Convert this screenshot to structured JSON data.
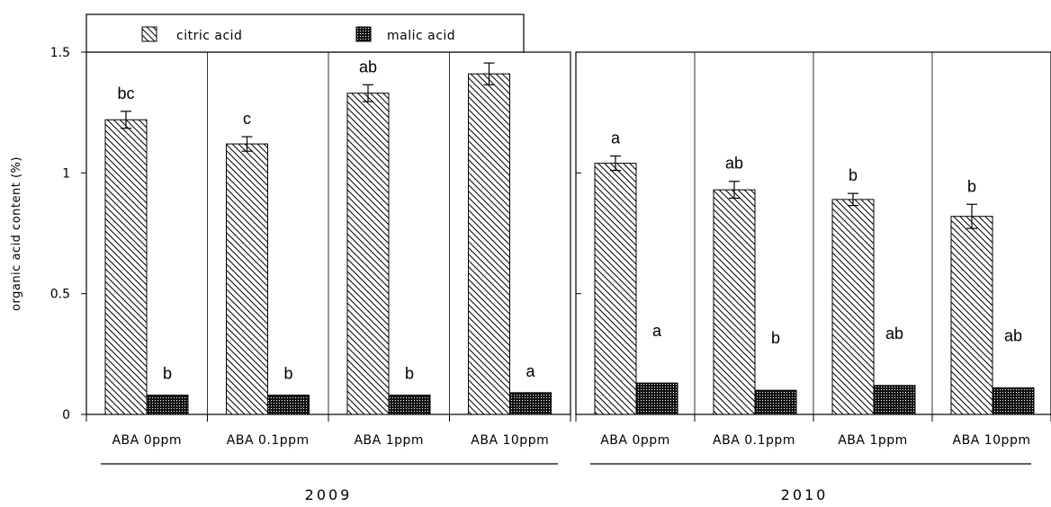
{
  "chart_data": {
    "type": "bar",
    "ylabel": "organic acid content (%)",
    "ylim": [
      0,
      1.5
    ],
    "yticks": [
      "0",
      "0.5",
      "1",
      "1.5"
    ],
    "legend": [
      {
        "name": "citric acid",
        "pattern": "diagonal-hatch"
      },
      {
        "name": "malic acid",
        "pattern": "dotted-dark"
      }
    ],
    "groups": [
      {
        "year": "2009",
        "categories": [
          "ABA 0ppm",
          "ABA 0.1ppm",
          "ABA 1ppm",
          "ABA 10ppm"
        ],
        "series": [
          {
            "name": "citric acid",
            "values": [
              1.22,
              1.12,
              1.33,
              1.41
            ],
            "errors": [
              0.035,
              0.03,
              0.035,
              0.045
            ],
            "letters": [
              "bc",
              "c",
              "ab",
              "a"
            ]
          },
          {
            "name": "malic acid",
            "values": [
              0.08,
              0.08,
              0.08,
              0.09
            ],
            "errors": [
              0.0,
              0.0,
              0.0,
              0.0
            ],
            "letters": [
              "b",
              "b",
              "b",
              "a"
            ]
          }
        ]
      },
      {
        "year": "2010",
        "categories": [
          "ABA 0ppm",
          "ABA 0.1ppm",
          "ABA 1ppm",
          "ABA 10ppm"
        ],
        "series": [
          {
            "name": "citric acid",
            "values": [
              1.04,
              0.93,
              0.89,
              0.82
            ],
            "errors": [
              0.03,
              0.035,
              0.025,
              0.05
            ],
            "letters": [
              "a",
              "ab",
              "b",
              "b"
            ]
          },
          {
            "name": "malic acid",
            "values": [
              0.13,
              0.1,
              0.12,
              0.11
            ],
            "errors": [
              0.005,
              0.005,
              0.005,
              0.005
            ],
            "letters": [
              "a",
              "b",
              "ab",
              "ab"
            ]
          }
        ]
      }
    ]
  },
  "colors": {
    "bar_fill": "#ffffff",
    "stroke": "#000000"
  }
}
